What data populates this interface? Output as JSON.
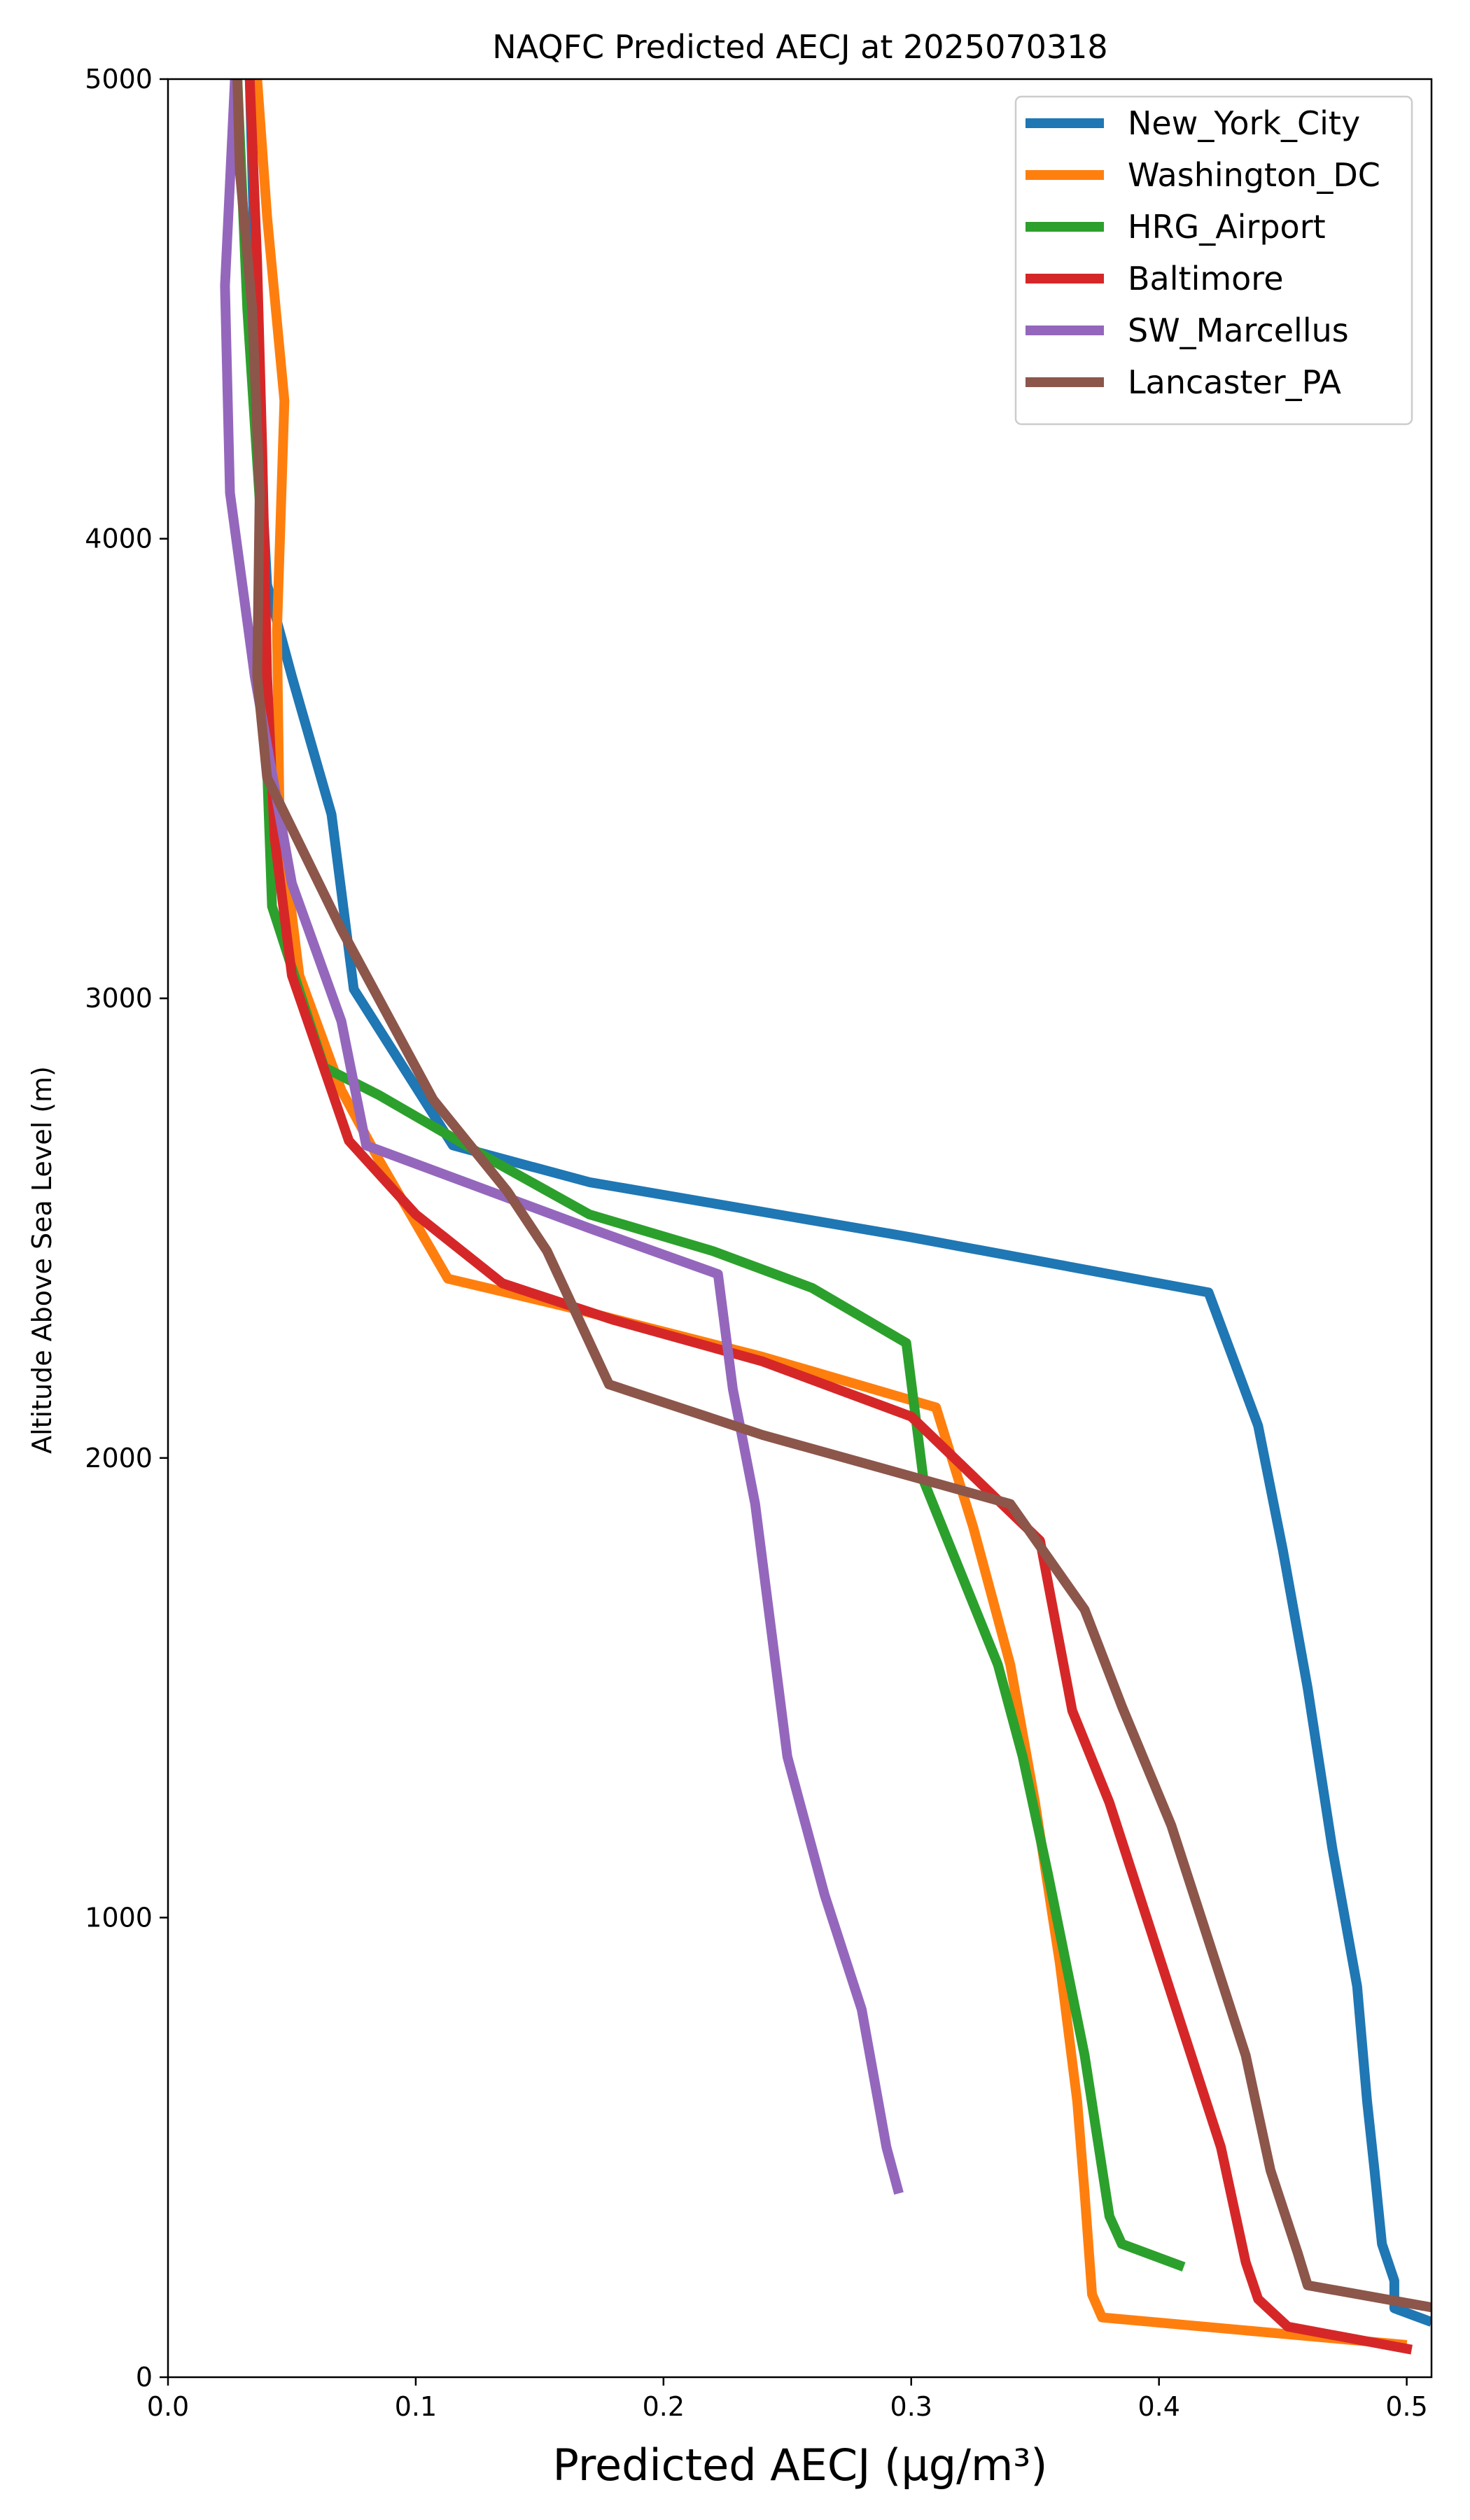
{
  "chart_data": {
    "type": "line",
    "title": "NAQFC Predicted AECJ at 2025070318",
    "xlabel": "Predicted AECJ (μg/m³)",
    "ylabel": "Altitude Above Sea Level (m)",
    "xlim": [
      0.0,
      0.51
    ],
    "ylim": [
      0,
      5000
    ],
    "xticks": [
      "0.0",
      "0.1",
      "0.2",
      "0.3",
      "0.4",
      "0.5"
    ],
    "xtick_values": [
      0.0,
      0.1,
      0.2,
      0.3,
      0.4,
      0.5
    ],
    "yticks": [
      "0",
      "1000",
      "2000",
      "3000",
      "4000",
      "5000"
    ],
    "ytick_values": [
      0,
      1000,
      2000,
      3000,
      4000,
      5000
    ],
    "grid": false,
    "legend_position": "top-right",
    "series": [
      {
        "name": "New_York_City",
        "color": "#1f77b4",
        "points": [
          [
            0.51,
            120
          ],
          [
            0.495,
            150
          ],
          [
            0.495,
            210
          ],
          [
            0.49,
            290
          ],
          [
            0.487,
            450
          ],
          [
            0.484,
            600
          ],
          [
            0.48,
            850
          ],
          [
            0.47,
            1150
          ],
          [
            0.46,
            1500
          ],
          [
            0.45,
            1800
          ],
          [
            0.44,
            2070
          ],
          [
            0.42,
            2360
          ],
          [
            0.3,
            2480
          ],
          [
            0.17,
            2600
          ],
          [
            0.115,
            2680
          ],
          [
            0.075,
            3020
          ],
          [
            0.066,
            3400
          ],
          [
            0.05,
            3700
          ],
          [
            0.04,
            3900
          ],
          [
            0.037,
            4200
          ],
          [
            0.035,
            4600
          ],
          [
            0.033,
            5000
          ]
        ]
      },
      {
        "name": "Washington_DC",
        "color": "#ff7f0e",
        "points": [
          [
            0.5,
            70
          ],
          [
            0.377,
            130
          ],
          [
            0.373,
            180
          ],
          [
            0.37,
            400
          ],
          [
            0.367,
            600
          ],
          [
            0.36,
            900
          ],
          [
            0.35,
            1250
          ],
          [
            0.34,
            1550
          ],
          [
            0.325,
            1850
          ],
          [
            0.31,
            2110
          ],
          [
            0.24,
            2220
          ],
          [
            0.16,
            2330
          ],
          [
            0.113,
            2390
          ],
          [
            0.085,
            2650
          ],
          [
            0.07,
            2800
          ],
          [
            0.053,
            3050
          ],
          [
            0.045,
            3400
          ],
          [
            0.044,
            3800
          ],
          [
            0.047,
            4300
          ],
          [
            0.04,
            4700
          ],
          [
            0.036,
            5000
          ]
        ]
      },
      {
        "name": "HRG_Airport",
        "color": "#2ca02c",
        "points": [
          [
            0.41,
            240
          ],
          [
            0.385,
            290
          ],
          [
            0.38,
            350
          ],
          [
            0.37,
            700
          ],
          [
            0.355,
            1100
          ],
          [
            0.345,
            1350
          ],
          [
            0.335,
            1550
          ],
          [
            0.32,
            1750
          ],
          [
            0.305,
            1950
          ],
          [
            0.298,
            2250
          ],
          [
            0.26,
            2370
          ],
          [
            0.22,
            2450
          ],
          [
            0.17,
            2530
          ],
          [
            0.13,
            2650
          ],
          [
            0.085,
            2790
          ],
          [
            0.063,
            2850
          ],
          [
            0.042,
            3200
          ],
          [
            0.04,
            3500
          ],
          [
            0.038,
            4000
          ],
          [
            0.032,
            4500
          ],
          [
            0.028,
            5000
          ]
        ]
      },
      {
        "name": "Baltimore",
        "color": "#d62728",
        "points": [
          [
            0.502,
            60
          ],
          [
            0.452,
            110
          ],
          [
            0.44,
            170
          ],
          [
            0.435,
            250
          ],
          [
            0.425,
            500
          ],
          [
            0.41,
            750
          ],
          [
            0.395,
            1000
          ],
          [
            0.38,
            1250
          ],
          [
            0.365,
            1450
          ],
          [
            0.352,
            1820
          ],
          [
            0.3,
            2090
          ],
          [
            0.24,
            2210
          ],
          [
            0.18,
            2300
          ],
          [
            0.135,
            2380
          ],
          [
            0.1,
            2530
          ],
          [
            0.073,
            2690
          ],
          [
            0.05,
            3050
          ],
          [
            0.043,
            3350
          ],
          [
            0.04,
            3700
          ],
          [
            0.038,
            4200
          ],
          [
            0.036,
            4600
          ],
          [
            0.033,
            5000
          ]
        ]
      },
      {
        "name": "SW_Marcellus",
        "color": "#9467bd",
        "points": [
          [
            0.295,
            400
          ],
          [
            0.29,
            500
          ],
          [
            0.28,
            800
          ],
          [
            0.265,
            1050
          ],
          [
            0.25,
            1350
          ],
          [
            0.237,
            1900
          ],
          [
            0.228,
            2150
          ],
          [
            0.222,
            2400
          ],
          [
            0.17,
            2500
          ],
          [
            0.12,
            2600
          ],
          [
            0.08,
            2680
          ],
          [
            0.07,
            2950
          ],
          [
            0.05,
            3250
          ],
          [
            0.035,
            3700
          ],
          [
            0.025,
            4100
          ],
          [
            0.023,
            4550
          ],
          [
            0.027,
            5000
          ]
        ]
      },
      {
        "name": "Lancaster_PA",
        "color": "#8c564b",
        "points": [
          [
            0.512,
            150
          ],
          [
            0.46,
            200
          ],
          [
            0.456,
            270
          ],
          [
            0.445,
            450
          ],
          [
            0.435,
            700
          ],
          [
            0.42,
            950
          ],
          [
            0.405,
            1200
          ],
          [
            0.385,
            1460
          ],
          [
            0.37,
            1670
          ],
          [
            0.34,
            1900
          ],
          [
            0.24,
            2050
          ],
          [
            0.178,
            2160
          ],
          [
            0.153,
            2450
          ],
          [
            0.137,
            2580
          ],
          [
            0.107,
            2780
          ],
          [
            0.07,
            3150
          ],
          [
            0.04,
            3480
          ],
          [
            0.036,
            3700
          ],
          [
            0.037,
            4100
          ],
          [
            0.034,
            4500
          ],
          [
            0.029,
            4800
          ],
          [
            0.028,
            5000
          ]
        ]
      }
    ]
  }
}
